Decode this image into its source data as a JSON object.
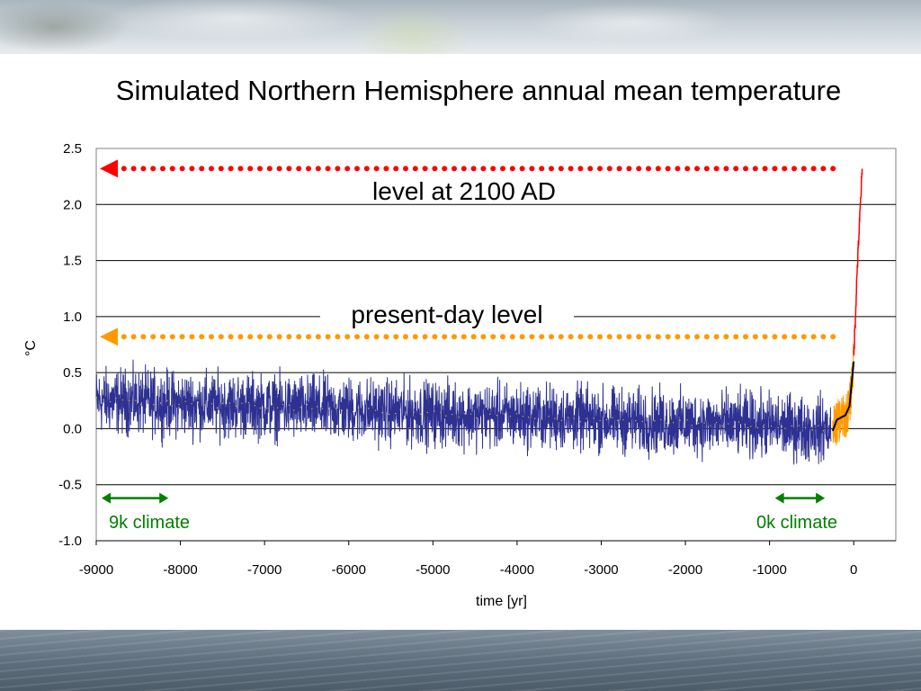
{
  "chart_data": {
    "type": "line",
    "title": "Simulated Northern Hemisphere annual mean temperature",
    "xlabel": "time [yr]",
    "ylabel": "°C",
    "xlim": [
      -9000,
      500
    ],
    "ylim": [
      -1.0,
      2.5
    ],
    "x_ticks": [
      "-9000",
      "-8000",
      "-7000",
      "-6000",
      "-5000",
      "-4000",
      "-3000",
      "-2000",
      "-1000",
      "0"
    ],
    "y_ticks": [
      "-1.0",
      "-0.5",
      "0.0",
      "0.5",
      "1.0",
      "1.5",
      "2.0",
      "2.5"
    ],
    "grid": true,
    "series": [
      {
        "color": "#2e3192",
        "x": [
          -9000,
          -8500,
          -8000,
          -7500,
          -7000,
          -6500,
          -6000,
          -5500,
          -5000,
          -4500,
          -4000,
          -3500,
          -3000,
          -2500,
          -2000,
          -1500,
          -1000,
          -500,
          -270
        ],
        "values": [
          0.25,
          0.24,
          0.22,
          0.21,
          0.2,
          0.18,
          0.17,
          0.15,
          0.13,
          0.12,
          0.11,
          0.1,
          0.08,
          0.06,
          0.05,
          0.04,
          0.03,
          0.0,
          0.0
        ]
      },
      {
        "color": "#ffd200",
        "x": [
          -9000,
          -8500,
          -8000,
          -7500,
          -7000,
          -6500,
          -6000,
          -5500,
          -5000,
          -4500,
          -4000,
          -3500,
          -3000,
          -2500,
          -2000,
          -1500,
          -1000,
          -500,
          -270
        ],
        "values": [
          0.26,
          0.24,
          0.23,
          0.21,
          0.2,
          0.19,
          0.17,
          0.15,
          0.14,
          0.12,
          0.11,
          0.09,
          0.08,
          0.07,
          0.05,
          0.04,
          0.03,
          0.01,
          0.0
        ]
      },
      {
        "color": "#ff9900",
        "x": [
          -250,
          -200,
          -150,
          -100,
          -50,
          0
        ],
        "values": [
          0.0,
          0.05,
          0.1,
          0.1,
          0.2,
          0.6
        ]
      },
      {
        "color": "#000000",
        "x": [
          -250,
          -200,
          -150,
          -100,
          -50,
          0
        ],
        "values": [
          -0.02,
          0.08,
          0.1,
          0.12,
          0.2,
          0.6
        ]
      },
      {
        "color": "#ff0000",
        "x": [
          0,
          20,
          40,
          60,
          80,
          100
        ],
        "values": [
          0.65,
          1.0,
          1.4,
          1.7,
          2.0,
          2.3
        ]
      }
    ],
    "annotations": [
      {
        "text": "level at 2100 AD",
        "color": "#ff0000",
        "y": 2.32,
        "x_from": -9000,
        "x_to": -150
      },
      {
        "text": "present-day level",
        "color": "#ff9900",
        "y": 0.82,
        "x_from": -9000,
        "x_to": -150
      },
      {
        "text": "9k climate",
        "color": "#008000",
        "x_from": -9000,
        "x_to": -8100,
        "y": -0.62
      },
      {
        "text": "0k climate",
        "color": "#008000",
        "x_from": -1000,
        "x_to": -300,
        "y": -0.62
      }
    ]
  }
}
